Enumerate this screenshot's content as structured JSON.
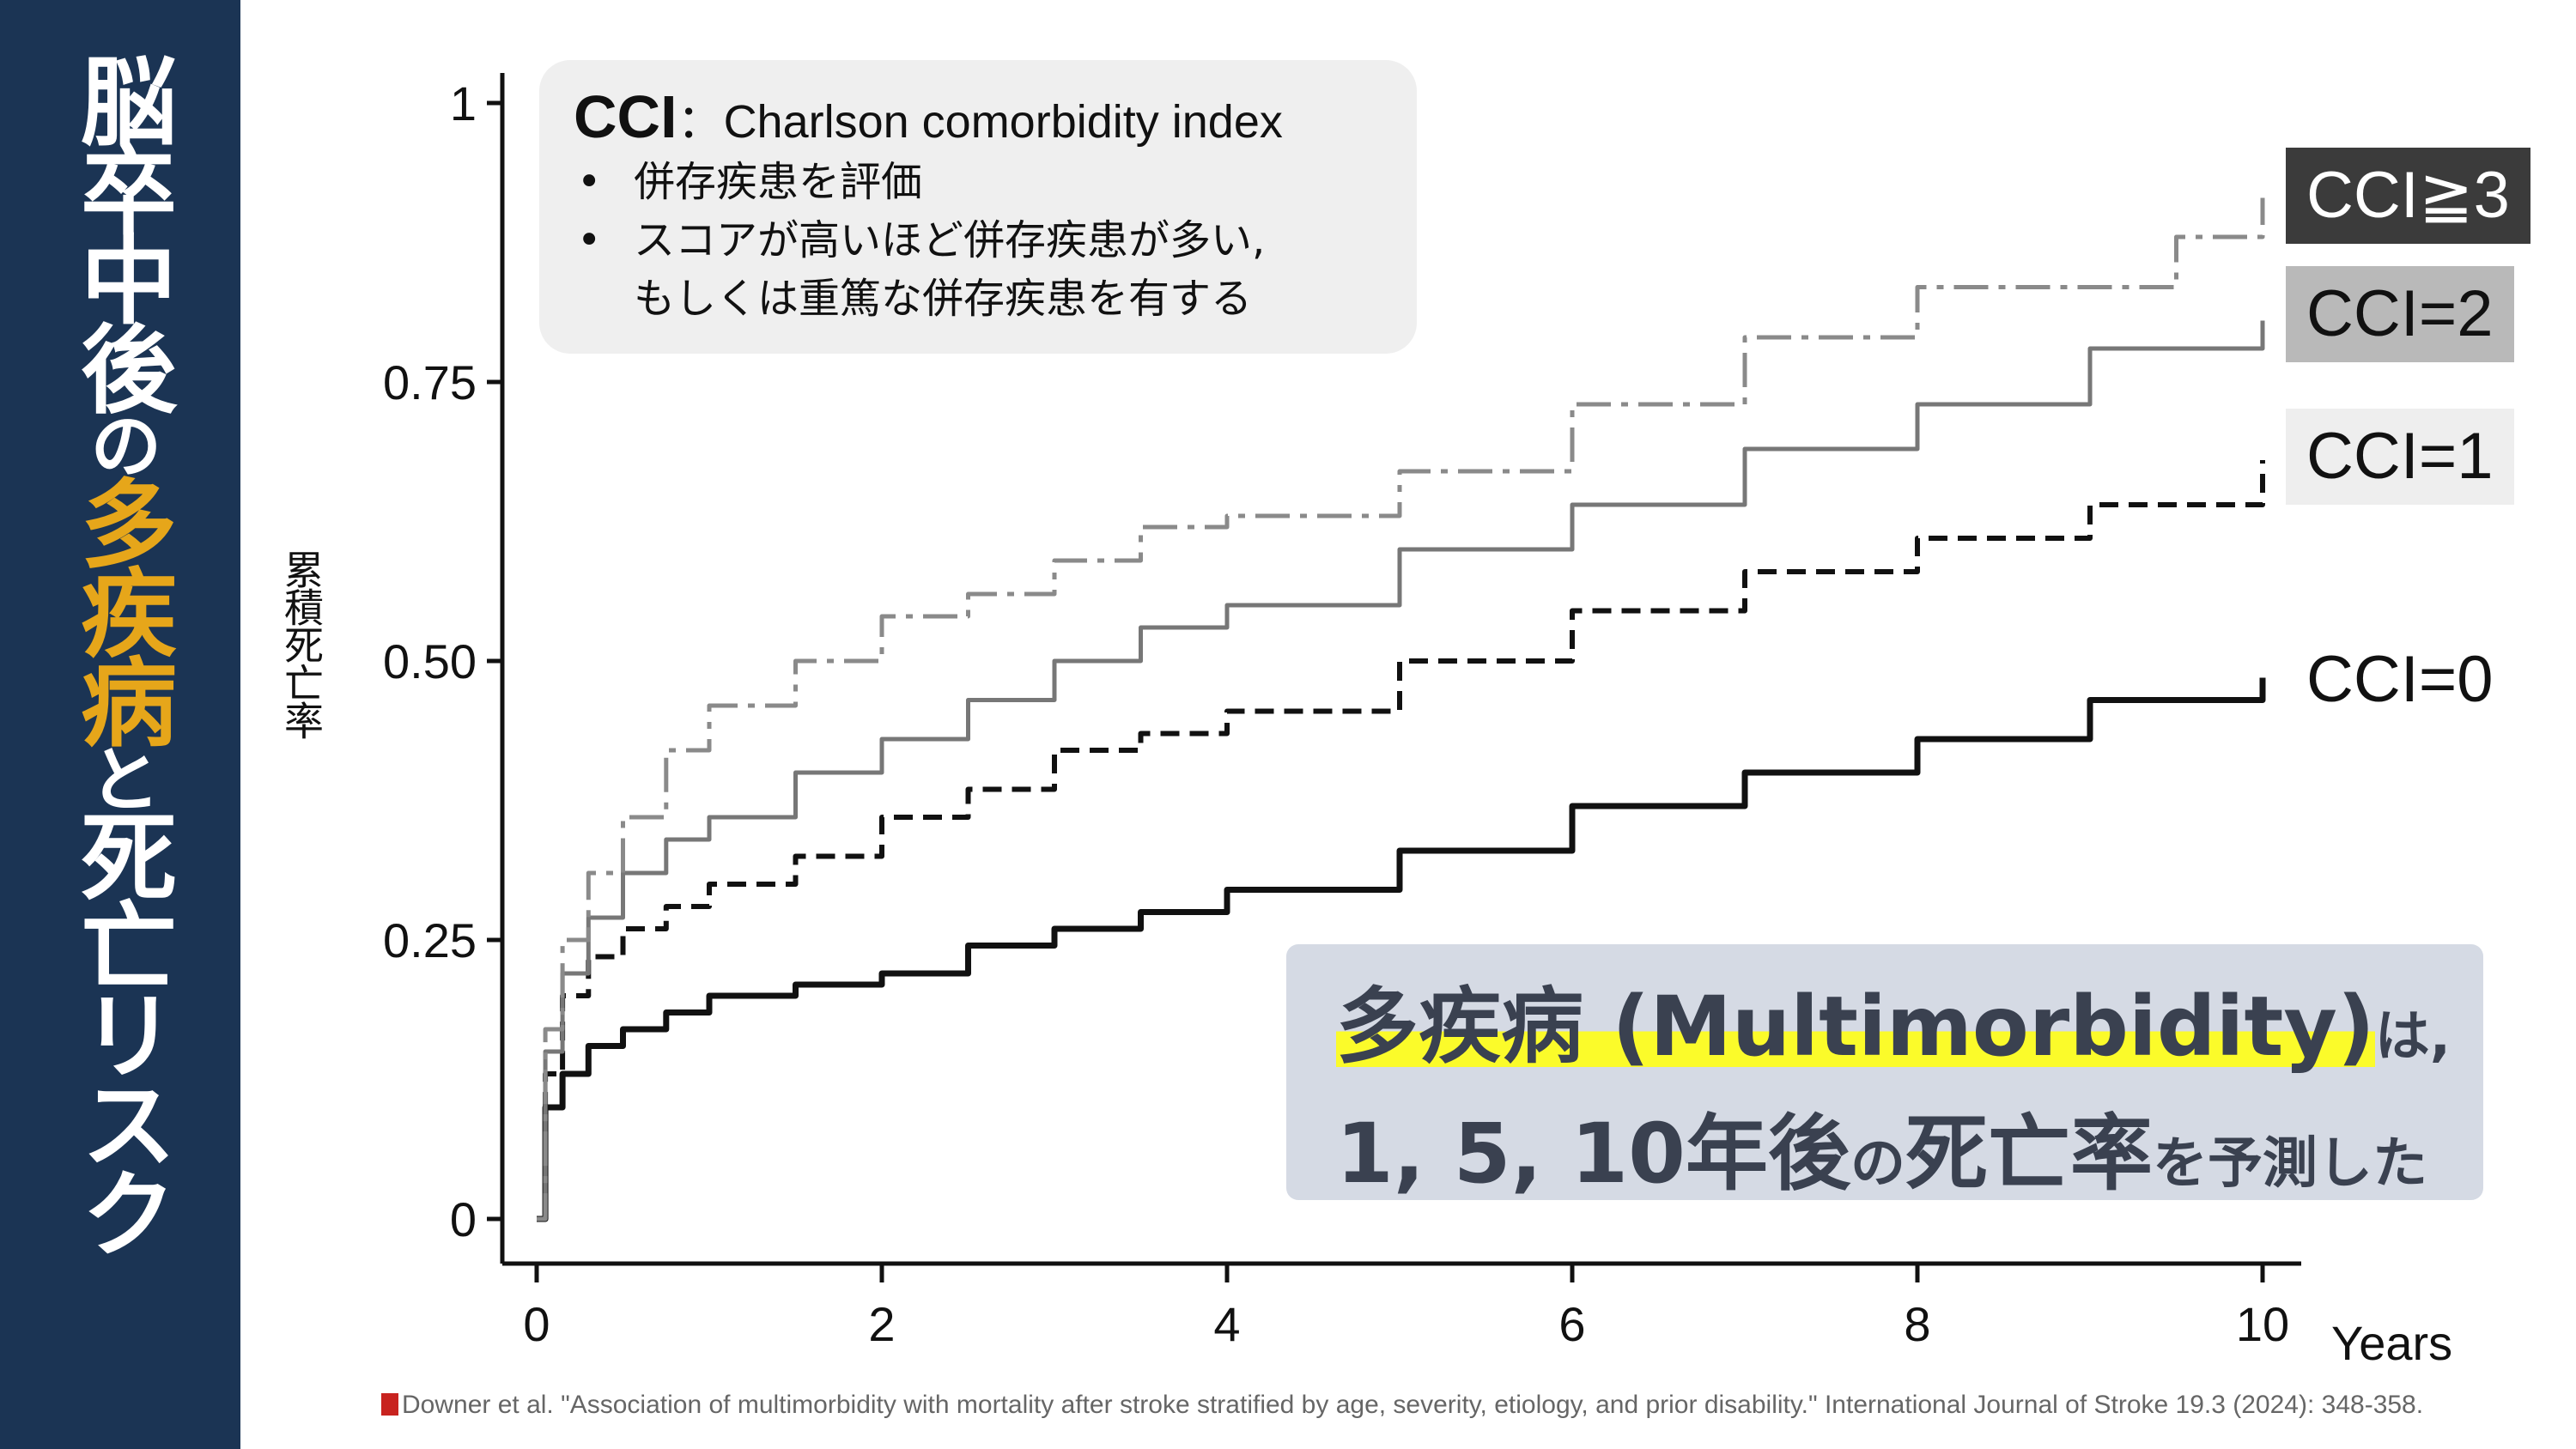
{
  "sidebar": {
    "title_part1": "脳卒中後",
    "title_no": "の",
    "title_highlight": "多疾病",
    "title_to": "と",
    "title_part2": "死亡リスク",
    "highlight_color": "#e6a61a",
    "background": "#1b3454"
  },
  "cci_box": {
    "abbr": "CCI",
    "colon": "：",
    "definition": "Charlson comorbidity index",
    "bullets": [
      "併存疾患を評価",
      "スコアが高いほど併存疾患が多い,"
    ],
    "continuation": "もしくは重篤な併存疾患を有する"
  },
  "callout": {
    "line1_main": "多疾病 (Multimorbidity)",
    "line1_tail": "は,",
    "line2_a": "1, 5, 10年後",
    "line2_b": "の",
    "line2_c": "死亡率",
    "line2_d": "を予測した"
  },
  "citation": {
    "icon": "book-icon",
    "text": "Downer et al. \"Association of multimorbidity with mortality after stroke stratified by age, severity, etiology, and prior disability.\" International Journal of Stroke 19.3 (2024): 348-358."
  },
  "chart_data": {
    "type": "line",
    "title": "",
    "xlabel": "Years",
    "ylabel": "累積死亡率",
    "xlim": [
      0,
      10
    ],
    "ylim": [
      0,
      1
    ],
    "x_ticks": [
      "0",
      "2",
      "4",
      "6",
      "8",
      "10"
    ],
    "y_ticks": [
      "0",
      "0.25",
      "0.50",
      "0.75",
      "1"
    ],
    "grid": false,
    "legend_placement": "right",
    "series": [
      {
        "name": "CCI=0",
        "style": "solid-thick",
        "color": "#111111",
        "x": [
          0,
          0.05,
          0.15,
          0.3,
          0.5,
          0.75,
          1,
          1.5,
          2,
          2.5,
          3,
          3.5,
          4,
          5,
          6,
          7,
          8,
          9,
          10
        ],
        "y": [
          0,
          0.1,
          0.13,
          0.155,
          0.17,
          0.185,
          0.2,
          0.21,
          0.22,
          0.245,
          0.26,
          0.275,
          0.295,
          0.33,
          0.37,
          0.4,
          0.43,
          0.465,
          0.485
        ]
      },
      {
        "name": "CCI=1",
        "style": "dashed",
        "color": "#111111",
        "x": [
          0,
          0.05,
          0.15,
          0.3,
          0.5,
          0.75,
          1,
          1.5,
          2,
          2.5,
          3,
          3.5,
          4,
          5,
          6,
          7,
          8,
          9,
          10
        ],
        "y": [
          0,
          0.13,
          0.2,
          0.235,
          0.26,
          0.28,
          0.3,
          0.325,
          0.36,
          0.385,
          0.42,
          0.435,
          0.455,
          0.5,
          0.545,
          0.58,
          0.61,
          0.64,
          0.68
        ]
      },
      {
        "name": "CCI=2",
        "style": "solid-gray",
        "color": "#777777",
        "x": [
          0,
          0.05,
          0.15,
          0.3,
          0.5,
          0.75,
          1,
          1.5,
          2,
          2.5,
          3,
          3.5,
          4,
          5,
          6,
          7,
          8,
          9,
          10
        ],
        "y": [
          0,
          0.15,
          0.22,
          0.27,
          0.31,
          0.34,
          0.36,
          0.4,
          0.43,
          0.465,
          0.5,
          0.53,
          0.55,
          0.6,
          0.64,
          0.69,
          0.73,
          0.78,
          0.805
        ]
      },
      {
        "name": "CCI≧3",
        "style": "dashdot-gray",
        "color": "#8a8a8a",
        "x": [
          0,
          0.05,
          0.15,
          0.3,
          0.5,
          0.75,
          1,
          1.5,
          2,
          2.5,
          3,
          3.5,
          4,
          5,
          6,
          7,
          8,
          8.5,
          9,
          9.5,
          10
        ],
        "y": [
          0,
          0.17,
          0.25,
          0.31,
          0.36,
          0.42,
          0.46,
          0.5,
          0.54,
          0.56,
          0.59,
          0.62,
          0.63,
          0.67,
          0.73,
          0.79,
          0.835,
          0.835,
          0.835,
          0.88,
          0.915
        ]
      }
    ]
  }
}
